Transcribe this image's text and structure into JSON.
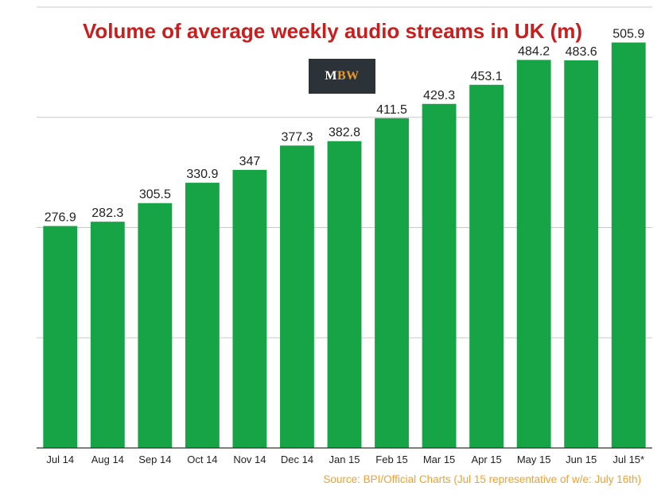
{
  "colors": {
    "title": "#c81e1e",
    "bar": "#17a446",
    "grid": "#c9c9c9",
    "axis": "#333333",
    "label": "#222222",
    "source": "#f0a030"
  },
  "logo": {
    "text_m": "M",
    "text_bw": "BW"
  },
  "source_note": "Source: BPI/Official Charts (Jul 15 representative of w/e: July 16th)",
  "chart_data": {
    "type": "bar",
    "title": "Volume of average weekly audio streams in UK (m)",
    "xlabel": "",
    "ylabel": "",
    "categories": [
      "Jul 14",
      "Aug 14",
      "Sep 14",
      "Oct 14",
      "Nov 14",
      "Dec 14",
      "Jan 15",
      "Feb 15",
      "Mar 15",
      "Apr 15",
      "May 15",
      "Jun 15",
      "Jul 15*"
    ],
    "values": [
      276.9,
      282.3,
      305.5,
      330.9,
      347,
      377.3,
      382.8,
      411.5,
      429.3,
      453.1,
      484.2,
      483.6,
      505.9
    ],
    "value_labels": [
      "276.9",
      "282.3",
      "305.5",
      "330.9",
      "347",
      "377.3",
      "382.8",
      "411.5",
      "429.3",
      "453.1",
      "484.2",
      "483.6",
      "505.9"
    ],
    "ylim": [
      0,
      550
    ],
    "y_gridlines": [
      0,
      137.5,
      275,
      412.5,
      550
    ],
    "grid": true,
    "legend": "none"
  }
}
